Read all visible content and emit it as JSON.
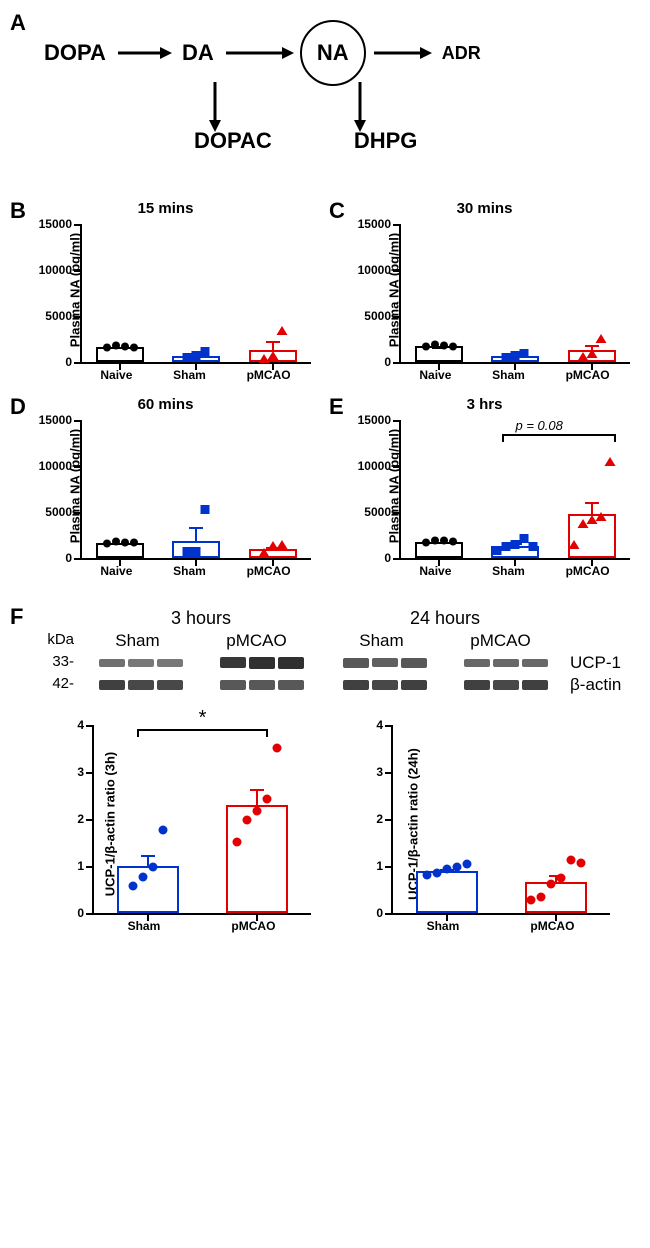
{
  "panelA": {
    "label": "A",
    "nodes": {
      "dopa": "DOPA",
      "da": "DA",
      "na": "NA",
      "adr": "ADR",
      "dopac": "DOPAC",
      "dhpg": "DHPG"
    }
  },
  "plasma": {
    "ylabel": "Plasma NA (pg/ml)",
    "ymax": 15000,
    "yticks": [
      0,
      5000,
      10000,
      15000
    ],
    "categories": [
      "Naive",
      "Sham",
      "pMCAO"
    ],
    "colors": {
      "naive": "#000000",
      "sham": "#0033cc",
      "pmcao": "#e30000"
    },
    "panels": {
      "B": {
        "title": "15 mins",
        "values": [
          1600,
          700,
          1350
        ],
        "err": [
          200,
          300,
          1100
        ],
        "pts": {
          "naive": [
            1500,
            1700,
            1650,
            1550
          ],
          "sham": [
            400,
            600,
            1100
          ],
          "pmcao": [
            350,
            700,
            3400
          ]
        }
      },
      "C": {
        "title": "30 mins",
        "values": [
          1700,
          650,
          1300
        ],
        "err": [
          200,
          250,
          800
        ],
        "pts": {
          "naive": [
            1600,
            1800,
            1750,
            1650
          ],
          "sham": [
            450,
            620,
            900
          ],
          "pmcao": [
            550,
            850,
            2500
          ]
        }
      },
      "D": {
        "title": "60 mins",
        "values": [
          1600,
          1900,
          1000
        ],
        "err": [
          200,
          1700,
          400
        ],
        "pts": {
          "naive": [
            1500,
            1700,
            1650,
            1600
          ],
          "sham": [
            600,
            700,
            5200
          ],
          "pmcao": [
            500,
            1300,
            1400
          ]
        }
      },
      "E": {
        "title": "3 hrs",
        "values": [
          1750,
          1350,
          4750
        ],
        "err": [
          250,
          500,
          1600
        ],
        "pts": {
          "naive": [
            1650,
            1850,
            1800,
            1700
          ],
          "sham": [
            750,
            1150,
            1400,
            2100,
            1200
          ],
          "pmcao": [
            1400,
            3700,
            4100,
            4500,
            10400
          ]
        },
        "anno": "p = 0.08"
      }
    }
  },
  "panelF": {
    "label": "F",
    "kDa": "kDa",
    "mw": {
      "ucp1": "33-",
      "actin": "42-"
    },
    "headers": {
      "h3": "3 hours",
      "h24": "24 hours"
    },
    "groups": [
      "Sham",
      "pMCAO"
    ],
    "proteins": {
      "ucp1": "UCP-1",
      "actin": "β-actin"
    },
    "bands3h": {
      "ucp1": {
        "sham": [
          0.55,
          0.5,
          0.5
        ],
        "pmcao": [
          0.9,
          0.95,
          0.95
        ]
      },
      "actin": {
        "sham": [
          0.85,
          0.8,
          0.8
        ],
        "pmcao": [
          0.7,
          0.7,
          0.7
        ]
      }
    },
    "bands24h": {
      "ucp1": {
        "sham": [
          0.7,
          0.65,
          0.7
        ],
        "pmcao": [
          0.6,
          0.6,
          0.6
        ]
      },
      "actin": {
        "sham": [
          0.85,
          0.8,
          0.85
        ],
        "pmcao": [
          0.85,
          0.8,
          0.85
        ]
      }
    },
    "ratio3h": {
      "ylabel": "UCP-1/β-actin ratio (3h)",
      "ymax": 4,
      "yticks": [
        0,
        1,
        2,
        3,
        4
      ],
      "categories": [
        "Sham",
        "pMCAO"
      ],
      "values": [
        1.0,
        2.3
      ],
      "err": [
        0.28,
        0.38
      ],
      "pts": {
        "sham": [
          0.55,
          0.75,
          0.95,
          1.75
        ],
        "pmcao": [
          1.5,
          1.95,
          2.15,
          2.4,
          3.5
        ]
      },
      "sig": "*"
    },
    "ratio24h": {
      "ylabel": "UCP-1/β-actin ratio (24h)",
      "ymax": 4,
      "yticks": [
        0,
        1,
        2,
        3,
        4
      ],
      "categories": [
        "Sham",
        "pMCAO"
      ],
      "values": [
        0.9,
        0.67
      ],
      "err": [
        0.08,
        0.18
      ],
      "pts": {
        "sham": [
          0.78,
          0.82,
          0.92,
          0.96,
          1.02
        ],
        "pmcao": [
          0.25,
          0.32,
          0.6,
          0.72,
          1.1,
          1.05
        ]
      }
    }
  }
}
